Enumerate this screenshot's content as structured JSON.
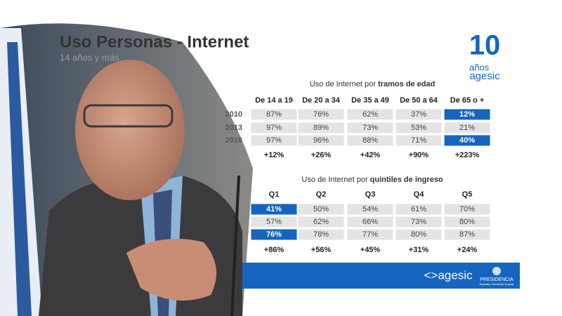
{
  "header": {
    "title": "Uso Personas - Internet",
    "subtitle": "14 años y más"
  },
  "logo": {
    "number": "10",
    "line1": "años",
    "line2": "agesic"
  },
  "table_age": {
    "caption": "Uso de Internet por",
    "caption_bold": "tramos de edad",
    "columns": [
      "De 14 a 19",
      "De 20 a 34",
      "De 35 a 49",
      "De 50 a 64",
      "De 65 o +"
    ],
    "rows": [
      {
        "label": "2010",
        "cells": [
          {
            "text": "87%"
          },
          {
            "text": "76%"
          },
          {
            "text": "62%"
          },
          {
            "text": "37%"
          },
          {
            "text": "12%",
            "highlight": true
          }
        ]
      },
      {
        "label": "2013",
        "cells": [
          {
            "text": "97%"
          },
          {
            "text": "89%"
          },
          {
            "text": "73%"
          },
          {
            "text": "53%"
          },
          {
            "text": "21%"
          }
        ]
      },
      {
        "label": "2016",
        "cells": [
          {
            "text": "97%"
          },
          {
            "text": "96%"
          },
          {
            "text": "88%"
          },
          {
            "text": "71%"
          },
          {
            "text": "40%",
            "highlight": true
          }
        ]
      }
    ],
    "changes": [
      "+12%",
      "+26%",
      "+42%",
      "+90%",
      "+223%"
    ]
  },
  "table_income": {
    "caption": "Uso de Internet por",
    "caption_bold": "quintiles de ingreso",
    "columns": [
      "Q1",
      "Q2",
      "Q3",
      "Q4",
      "Q5"
    ],
    "rows": [
      {
        "cells": [
          {
            "text": "41%",
            "highlight": true
          },
          {
            "text": "50%"
          },
          {
            "text": "54%"
          },
          {
            "text": "61%"
          },
          {
            "text": "70%"
          }
        ]
      },
      {
        "cells": [
          {
            "text": "57%"
          },
          {
            "text": "62%"
          },
          {
            "text": "66%"
          },
          {
            "text": "73%"
          },
          {
            "text": "80%"
          }
        ]
      },
      {
        "cells": [
          {
            "text": "76%",
            "highlight": true
          },
          {
            "text": "78%"
          },
          {
            "text": "77%"
          },
          {
            "text": "80%"
          },
          {
            "text": "87%"
          }
        ]
      }
    ],
    "changes": [
      "+86%",
      "+56%",
      "+45%",
      "+31%",
      "+24%"
    ]
  },
  "footer": {
    "brand": "<>agesic",
    "presidencia": "PRESIDENCIA",
    "presidencia_sub": "República Oriental del Uruguay"
  }
}
